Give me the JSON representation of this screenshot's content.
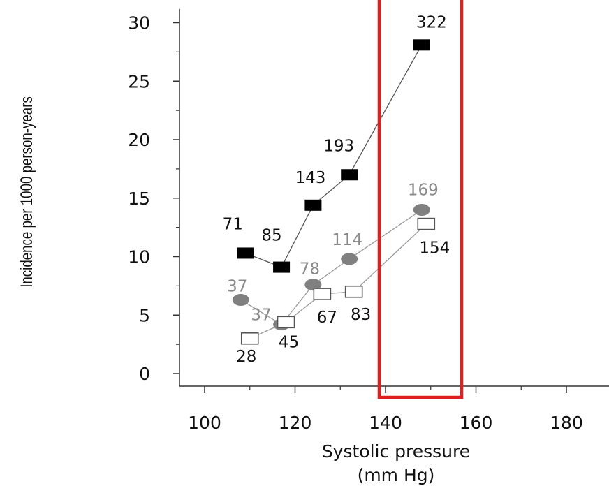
{
  "chart_data": {
    "type": "scatter",
    "xlabel": [
      "Systolic pressure",
      "(mm Hg)"
    ],
    "ylabel": "Incidence per 1000 person-years",
    "xlim": [
      95,
      190
    ],
    "ylim": [
      -1,
      31
    ],
    "xticks": [
      100,
      120,
      140,
      160,
      180
    ],
    "yticks": [
      0,
      5,
      10,
      15,
      20,
      25,
      30
    ],
    "grid": false,
    "series": [
      {
        "marker": "filled-square",
        "color": "#000000",
        "label_color": "#111111",
        "points": [
          {
            "x": 109,
            "y": 10.3,
            "label": "71"
          },
          {
            "x": 117,
            "y": 9.1,
            "label": "85"
          },
          {
            "x": 124,
            "y": 14.4,
            "label": "143"
          },
          {
            "x": 132,
            "y": 17.0,
            "label": "193"
          },
          {
            "x": 148,
            "y": 28.1,
            "label": "322"
          }
        ]
      },
      {
        "marker": "filled-circle",
        "color": "#808080",
        "label_color": "#8a8a8a",
        "points": [
          {
            "x": 108,
            "y": 6.3,
            "label": "37"
          },
          {
            "x": 117,
            "y": 4.2,
            "label": "37"
          },
          {
            "x": 124,
            "y": 7.6,
            "label": "78"
          },
          {
            "x": 132,
            "y": 9.8,
            "label": "114"
          },
          {
            "x": 148,
            "y": 14.0,
            "label": "169"
          }
        ]
      },
      {
        "marker": "open-square",
        "color": "#555555",
        "label_color": "#111111",
        "points": [
          {
            "x": 110,
            "y": 3.0,
            "label": "28"
          },
          {
            "x": 118,
            "y": 4.4,
            "label": "45"
          },
          {
            "x": 126,
            "y": 6.8,
            "label": "67"
          },
          {
            "x": 133,
            "y": 7.0,
            "label": "83"
          },
          {
            "x": 149,
            "y": 12.8,
            "label": "154"
          }
        ]
      }
    ],
    "highlight": {
      "x_range": [
        140,
        156
      ],
      "color": "#e02020"
    }
  }
}
